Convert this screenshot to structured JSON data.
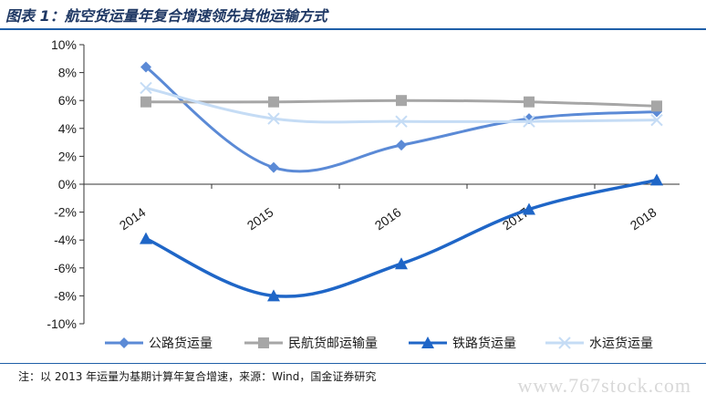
{
  "header": {
    "title": "图表 1：航空货运量年复合增速领先其他运输方式"
  },
  "footer": {
    "note": "注：以 2013 年运量为基期计算年复合增速，来源：Wind，国金证券研究"
  },
  "watermark": "www.767stock.com",
  "colors": {
    "rule": "#1f5fa8",
    "text": "#1a1a1a"
  },
  "chart_data": {
    "type": "line",
    "title": "",
    "xlabel": "",
    "ylabel": "",
    "categories": [
      "2014",
      "2015",
      "2016",
      "2017",
      "2018"
    ],
    "ylim": [
      -10,
      10
    ],
    "yticks": [
      -10,
      -8,
      -6,
      -4,
      -2,
      0,
      2,
      4,
      6,
      8,
      10
    ],
    "ytick_labels": [
      "-10%",
      "-8%",
      "-6%",
      "-4%",
      "-2%",
      "0%",
      "2%",
      "4%",
      "6%",
      "8%",
      "10%"
    ],
    "grid": false,
    "legend_position": "bottom",
    "series": [
      {
        "name": "公路货运量",
        "values": [
          8.4,
          1.2,
          2.8,
          4.7,
          5.2
        ],
        "color": "#5b8ad6",
        "marker": "diamond"
      },
      {
        "name": "民航货邮运输量",
        "values": [
          5.9,
          5.9,
          6.0,
          5.9,
          5.6
        ],
        "color": "#a6a6a6",
        "marker": "square"
      },
      {
        "name": "铁路货运量",
        "values": [
          -3.9,
          -8.0,
          -5.7,
          -1.8,
          0.3
        ],
        "color": "#1f66c7",
        "marker": "triangle"
      },
      {
        "name": "水运货运量",
        "values": [
          6.9,
          4.7,
          4.5,
          4.5,
          4.6
        ],
        "color": "#c5dcf5",
        "marker": "x"
      }
    ]
  }
}
